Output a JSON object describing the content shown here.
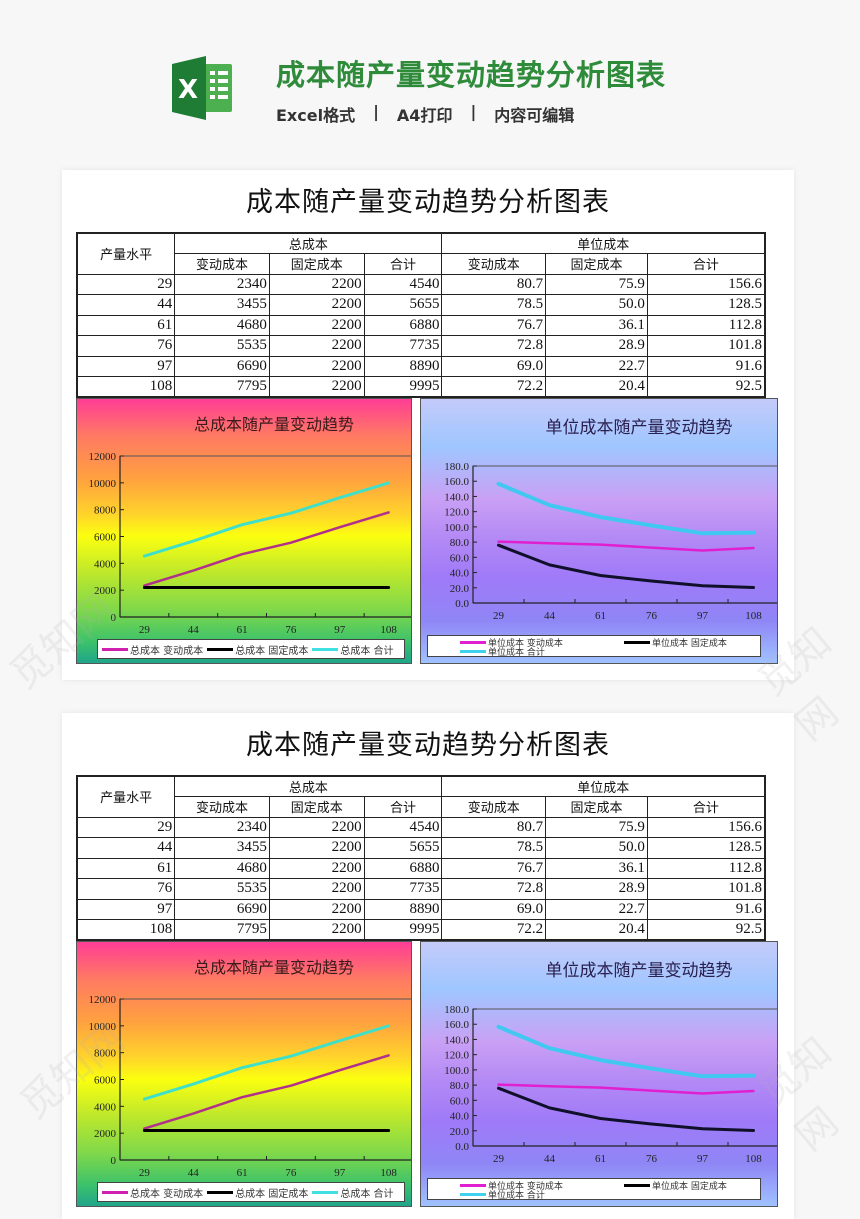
{
  "banner": {
    "logo_icon": "excel-logo-icon",
    "logo_letter": "X",
    "title": "成本随产量变动趋势分析图表",
    "tags": [
      "Excel格式",
      "A4打印",
      "内容可编辑"
    ],
    "separator": "|"
  },
  "sheet": {
    "title": "成本随产量变动趋势分析图表",
    "table": {
      "row_header": "产量水平",
      "group_headers": [
        "总成本",
        "单位成本"
      ],
      "sub_headers": [
        "变动成本",
        "固定成本",
        "合计",
        "变动成本",
        "固定成本",
        "合计"
      ],
      "rows": [
        [
          "29",
          "2340",
          "2200",
          "4540",
          "80.7",
          "75.9",
          "156.6"
        ],
        [
          "44",
          "3455",
          "2200",
          "5655",
          "78.5",
          "50.0",
          "128.5"
        ],
        [
          "61",
          "4680",
          "2200",
          "6880",
          "76.7",
          "36.1",
          "112.8"
        ],
        [
          "76",
          "5535",
          "2200",
          "7735",
          "72.8",
          "28.9",
          "101.8"
        ],
        [
          "97",
          "6690",
          "2200",
          "8890",
          "69.0",
          "22.7",
          "91.6"
        ],
        [
          "108",
          "7795",
          "2200",
          "9995",
          "72.2",
          "20.4",
          "92.5"
        ]
      ]
    },
    "charts": {
      "left": {
        "title": "总成本随产量变动趋势",
        "legend": [
          "总成本 变动成本",
          "总成本 固定成本",
          "总成本 合计"
        ]
      },
      "right": {
        "title": "单位成本随产量变动趋势",
        "legend": [
          "单位成本 变动成本",
          "单位成本 固定成本",
          "单位成本 合计"
        ]
      }
    }
  },
  "colors": {
    "brand_green": "#2e8b3a",
    "series_variable": "#c0208f",
    "series_fixed": "#000000",
    "series_total": "#40e0e0",
    "series_variable_unit": "#e020d0",
    "series_total_unit": "#40c8f0"
  },
  "chart_data": [
    {
      "type": "line",
      "title": "总成本随产量变动趋势",
      "categories": [
        "29",
        "44",
        "61",
        "76",
        "97",
        "108"
      ],
      "series": [
        {
          "name": "总成本 变动成本",
          "values": [
            2340,
            3455,
            4680,
            5535,
            6690,
            7795
          ]
        },
        {
          "name": "总成本 固定成本",
          "values": [
            2200,
            2200,
            2200,
            2200,
            2200,
            2200
          ]
        },
        {
          "name": "总成本 合计",
          "values": [
            4540,
            5655,
            6880,
            7735,
            8890,
            9995
          ]
        }
      ],
      "xlabel": "",
      "ylabel": "",
      "yticks": [
        "0",
        "2000",
        "4000",
        "6000",
        "8000",
        "10000",
        "12000"
      ],
      "ylim": [
        0,
        12000
      ],
      "grid": false,
      "legend_position": "bottom"
    },
    {
      "type": "line",
      "title": "单位成本随产量变动趋势",
      "categories": [
        "29",
        "44",
        "61",
        "76",
        "97",
        "108"
      ],
      "series": [
        {
          "name": "单位成本 变动成本",
          "values": [
            80.7,
            78.5,
            76.7,
            72.8,
            69.0,
            72.2
          ]
        },
        {
          "name": "单位成本 固定成本",
          "values": [
            75.9,
            50.0,
            36.1,
            28.9,
            22.7,
            20.4
          ]
        },
        {
          "name": "单位成本 合计",
          "values": [
            156.6,
            128.5,
            112.8,
            101.8,
            91.6,
            92.5
          ]
        }
      ],
      "xlabel": "",
      "ylabel": "",
      "yticks": [
        "0.0",
        "20.0",
        "40.0",
        "60.0",
        "80.0",
        "100.0",
        "120.0",
        "140.0",
        "160.0",
        "180.0"
      ],
      "ylim": [
        0,
        180
      ],
      "grid": false,
      "legend_position": "bottom"
    }
  ],
  "watermark": "觅知网"
}
